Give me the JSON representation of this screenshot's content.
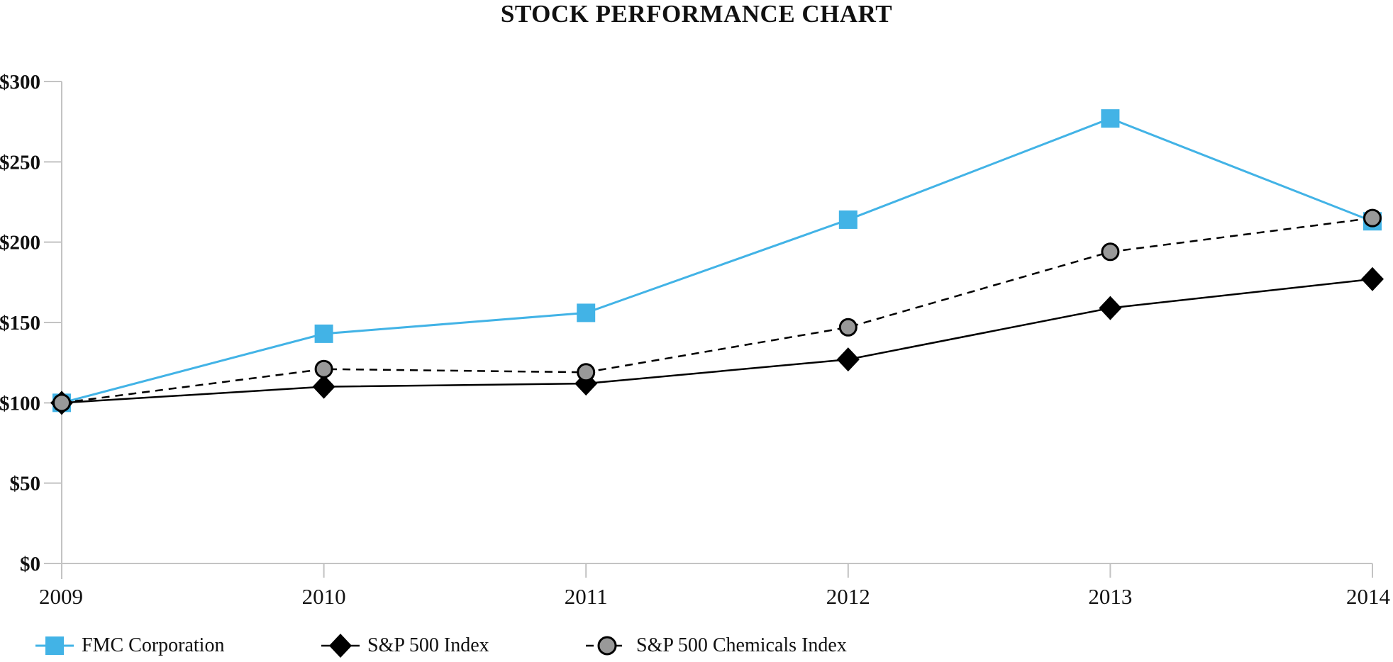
{
  "chart_data": {
    "type": "line",
    "title": "STOCK PERFORMANCE CHART",
    "x": [
      "2009",
      "2010",
      "2011",
      "2012",
      "2013",
      "2014"
    ],
    "xlabel": "",
    "ylabel": "",
    "ylim": [
      0,
      300
    ],
    "y_tick_step": 50,
    "y_tick_labels": [
      "$0",
      "$50",
      "$100",
      "$150",
      "$200",
      "$250",
      "$300"
    ],
    "grid": false,
    "legend_position": "bottom",
    "axis_color": "#c3c3c3",
    "series": [
      {
        "name": "FMC Corporation",
        "marker": "square",
        "line_style": "solid",
        "color": "#42b3e6",
        "line_color": "#42b3e6",
        "values": [
          100,
          143,
          156,
          214,
          277,
          213
        ]
      },
      {
        "name": "S&P 500 Index",
        "marker": "diamond",
        "line_style": "solid",
        "color": "#000000",
        "line_color": "#000000",
        "values": [
          100,
          110,
          112,
          127,
          159,
          177
        ]
      },
      {
        "name": "S&P 500 Chemicals Index",
        "marker": "circle",
        "line_style": "dashed",
        "color": "#999999",
        "line_color": "#000000",
        "values": [
          100,
          121,
          119,
          147,
          194,
          215
        ]
      }
    ]
  }
}
